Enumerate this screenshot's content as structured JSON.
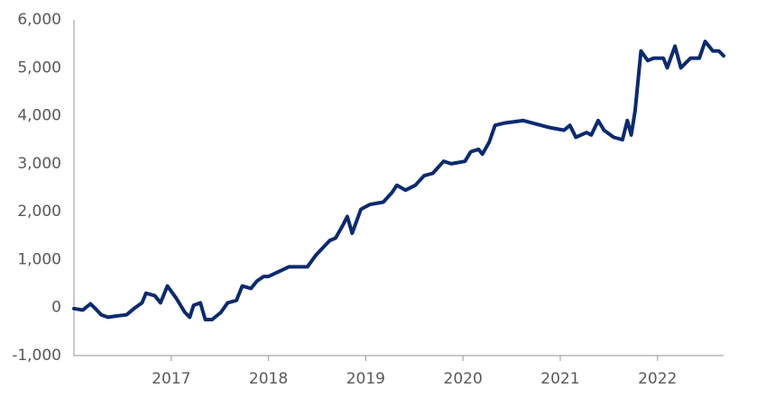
{
  "chart_data": {
    "type": "line",
    "x": [
      2016.0,
      2016.09,
      2016.17,
      2016.22,
      2016.28,
      2016.35,
      2016.45,
      2016.54,
      2016.63,
      2016.7,
      2016.74,
      2016.83,
      2016.89,
      2016.96,
      2017.05,
      2017.14,
      2017.19,
      2017.23,
      2017.3,
      2017.35,
      2017.42,
      2017.51,
      2017.58,
      2017.67,
      2017.73,
      2017.82,
      2017.88,
      2017.95,
      2018.0,
      2018.21,
      2018.4,
      2018.49,
      2018.63,
      2018.69,
      2018.76,
      2018.81,
      2018.86,
      2018.95,
      2019.04,
      2019.18,
      2019.27,
      2019.32,
      2019.41,
      2019.51,
      2019.6,
      2019.69,
      2019.8,
      2019.88,
      2020.02,
      2020.08,
      2020.16,
      2020.2,
      2020.27,
      2020.33,
      2020.43,
      2020.62,
      2020.71,
      2020.9,
      2021.04,
      2021.1,
      2021.16,
      2021.27,
      2021.32,
      2021.39,
      2021.45,
      2021.55,
      2021.64,
      2021.69,
      2021.73,
      2021.77,
      2021.83,
      2021.9,
      2021.96,
      2022.06,
      2022.1,
      2022.18,
      2022.24,
      2022.34,
      2022.43,
      2022.49,
      2022.57,
      2022.63,
      2022.68
    ],
    "series": [
      {
        "color": "#0b2a6f",
        "values": [
          -20,
          -50,
          80,
          -20,
          -150,
          -200,
          -170,
          -150,
          0,
          100,
          300,
          250,
          100,
          450,
          200,
          -100,
          -200,
          50,
          100,
          -250,
          -250,
          -100,
          100,
          150,
          450,
          400,
          550,
          650,
          650,
          850,
          850,
          1100,
          1400,
          1450,
          1700,
          1900,
          1550,
          2050,
          2150,
          2200,
          2400,
          2550,
          2450,
          2550,
          2750,
          2800,
          3050,
          3000,
          3050,
          3250,
          3300,
          3200,
          3450,
          3800,
          3850,
          3900,
          3850,
          3750,
          3700,
          3800,
          3550,
          3650,
          3600,
          3900,
          3700,
          3550,
          3500,
          3900,
          3600,
          4100,
          5350,
          5150,
          5200,
          5200,
          5000,
          5450,
          5000,
          5200,
          5200,
          5550,
          5350,
          5350,
          5250
        ]
      }
    ],
    "xlim": [
      2016.0,
      2022.68
    ],
    "xticks": [
      2017,
      2018,
      2019,
      2020,
      2021,
      2022
    ],
    "ylim": [
      -1000,
      6000
    ],
    "yticks": [
      {
        "value": -1000,
        "label": "-1,000"
      },
      0,
      {
        "value": 1000,
        "label": "1,000"
      },
      {
        "value": 2000,
        "label": "2,000"
      },
      {
        "value": 3000,
        "label": "3,000"
      },
      {
        "value": 4000,
        "label": "4,000"
      },
      {
        "value": 5000,
        "label": "5,000"
      },
      {
        "value": 6000,
        "label": "6,000"
      }
    ],
    "grid": false
  }
}
